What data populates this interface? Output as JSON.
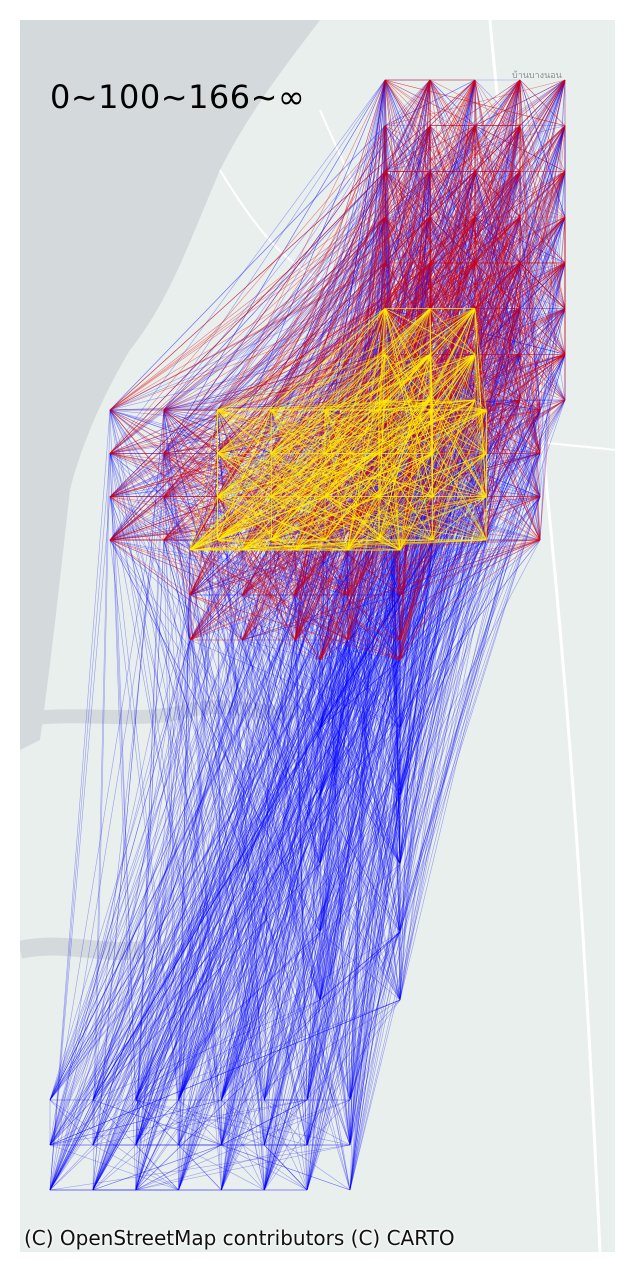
{
  "map": {
    "title": "0~100~166~∞",
    "attribution": "(C) OpenStreetMap contributors (C) CARTO",
    "place_label": "บ้านบางนอน",
    "basemap_colors": {
      "land": "#e9efec",
      "water": "#d4dadc",
      "road": "#ffffff"
    },
    "legend_bins": [
      {
        "range": "0~100",
        "color": "#0000ff"
      },
      {
        "range": "100~166",
        "color": "#dd0000"
      },
      {
        "range": "166~∞",
        "color": "#ffee00"
      }
    ]
  }
}
